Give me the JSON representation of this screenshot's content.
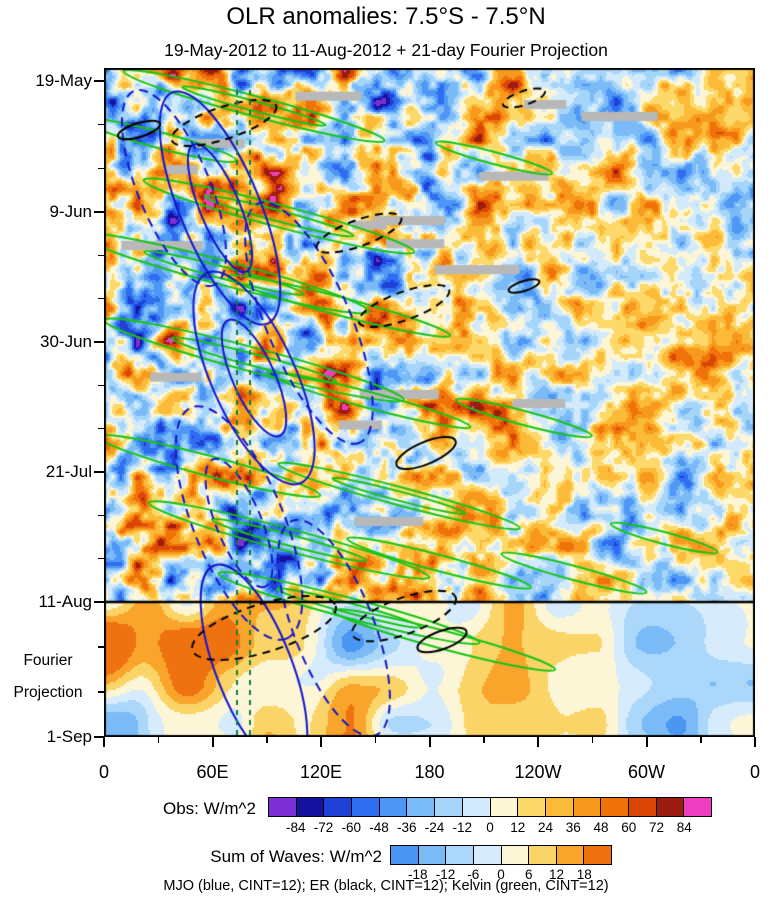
{
  "title": "OLR anomalies: 7.5°S - 7.5°N",
  "subtitle": "19-May-2012 to 11-Aug-2012 + 21-day Fourier Projection",
  "chart_data": {
    "type": "heatmap",
    "title": "OLR anomalies: 7.5°S - 7.5°N",
    "subtitle": "19-May-2012 to 11-Aug-2012 + 21-day Fourier Projection",
    "x_axis": {
      "ticks": [
        "0",
        "60E",
        "120E",
        "180",
        "120W",
        "60W",
        "0"
      ],
      "range_degrees_east": [
        0,
        360
      ]
    },
    "y_axis": {
      "ticks": [
        "19-May",
        "9-Jun",
        "30-Jun",
        "21-Jul",
        "11-Aug",
        "1-Sep"
      ],
      "range": [
        "19-May-2012",
        "1-Sep-2012"
      ],
      "annotation": [
        "Fourier",
        "Projection"
      ]
    },
    "observation_end_divider": "11-Aug",
    "obs_colorbar": {
      "label": "Obs: W/m^2",
      "ticks": [
        -84,
        -72,
        -60,
        -48,
        -36,
        -24,
        -12,
        0,
        12,
        24,
        36,
        48,
        60,
        72,
        84
      ],
      "contour_interval": 12,
      "colors": [
        "#7b2fd4",
        "#14129e",
        "#1f41d8",
        "#2f6ef0",
        "#4f97f5",
        "#7abbf7",
        "#a6d5fa",
        "#d2eafc",
        "#fdf6d6",
        "#fcd968",
        "#fbba38",
        "#f7991c",
        "#ef720a",
        "#d94605",
        "#9c1c10",
        "#ee3fc0"
      ]
    },
    "waves_colorbar": {
      "label": "Sum of Waves: W/m^2",
      "ticks": [
        -18,
        -12,
        -6,
        0,
        6,
        12,
        18
      ],
      "contour_interval": 6,
      "colors": [
        "#4a97f3",
        "#7abbf7",
        "#abd7fa",
        "#d6ecfc",
        "#fdf6d6",
        "#fbd468",
        "#f9a52c",
        "#ef7210"
      ]
    },
    "legend_caption": "MJO (blue, CINT=12); ER (black, CINT=12); Kelvin (green, CINT=12)",
    "wave_overlays": [
      {
        "name": "MJO",
        "color": "blue",
        "cint": 12
      },
      {
        "name": "ER",
        "color": "black",
        "cint": 12
      },
      {
        "name": "Kelvin",
        "color": "green",
        "cint": 12
      }
    ],
    "reference_lines": {
      "vertical_dashed_green_longitude_deg_east": [
        70,
        77
      ]
    },
    "missing_data_color": "#b8b8b8"
  }
}
